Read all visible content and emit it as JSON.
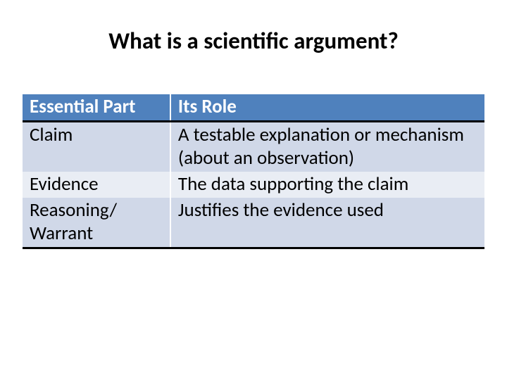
{
  "slide": {
    "title": "What is a scientific argument?",
    "background_color": "#ffffff",
    "title_fontsize": 33,
    "title_fontweight": 700,
    "title_color": "#000000"
  },
  "table": {
    "type": "table",
    "header_bg": "#4f81bd",
    "header_text_color": "#ffffff",
    "row_band_colors": [
      "#d0d8e8",
      "#e9edf4"
    ],
    "cell_fontsize": 27,
    "column_widths_pct": [
      32,
      68
    ],
    "border_color": "#000000",
    "columns": [
      "Essential Part",
      "Its Role"
    ],
    "rows": [
      [
        "Claim",
        "A testable explanation or mechanism (about an observation)"
      ],
      [
        "Evidence",
        "The data supporting the claim"
      ],
      [
        "Reasoning/ Warrant",
        "Justifies the evidence used"
      ]
    ]
  }
}
